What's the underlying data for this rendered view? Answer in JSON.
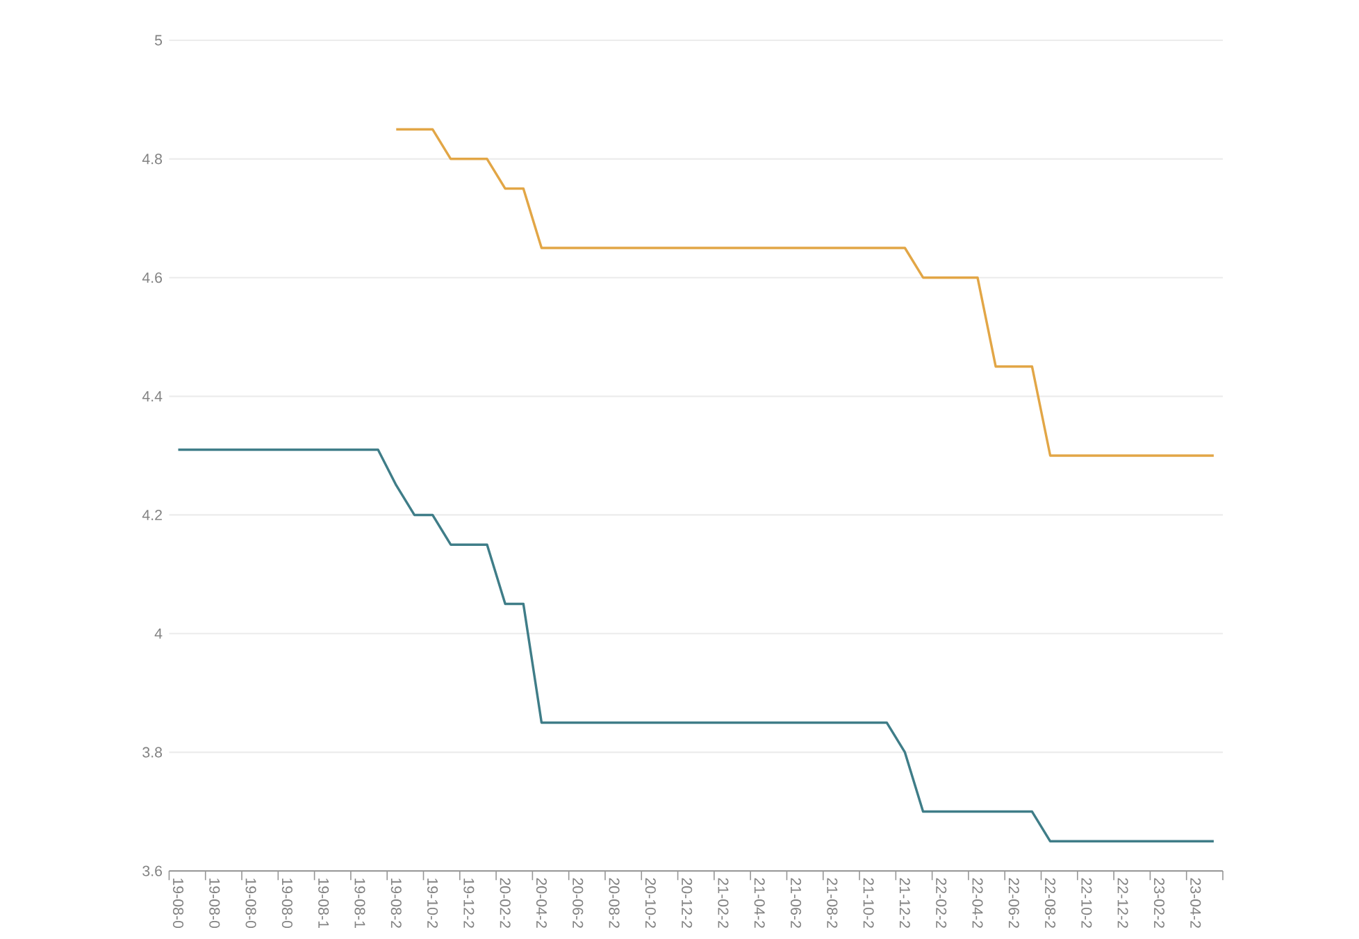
{
  "chart_data": {
    "type": "line",
    "ylim": [
      3.6,
      5
    ],
    "yticks": [
      3.6,
      3.8,
      4,
      4.2,
      4.4,
      4.6,
      4.8,
      5
    ],
    "grid": "y",
    "marker": "none",
    "line_style": "solid",
    "categories": [
      "19-08-0",
      null,
      "19-08-0",
      null,
      "19-08-0",
      null,
      "19-08-0",
      null,
      "19-08-1",
      null,
      "19-08-1",
      null,
      "19-08-2",
      null,
      "19-10-2",
      null,
      "19-12-2",
      null,
      "20-02-2",
      null,
      "20-04-2",
      null,
      "20-06-2",
      null,
      "20-08-2",
      null,
      "20-10-2",
      null,
      "20-12-2",
      null,
      "21-02-2",
      null,
      "21-04-2",
      null,
      "21-06-2",
      null,
      "21-08-2",
      null,
      "21-10-2",
      null,
      "21-12-2",
      null,
      "22-02-2",
      null,
      "22-04-2",
      null,
      "22-06-2",
      null,
      "22-08-2",
      null,
      "22-10-2",
      null,
      "22-12-2",
      null,
      "23-02-2",
      null,
      "23-04-2",
      null
    ],
    "series": [
      {
        "color": "#3f7d88",
        "values": [
          4.31,
          4.31,
          4.31,
          4.31,
          4.31,
          4.31,
          4.31,
          4.31,
          4.31,
          4.31,
          4.31,
          4.31,
          4.25,
          4.2,
          4.2,
          4.15,
          4.15,
          4.15,
          4.05,
          4.05,
          3.85,
          3.85,
          3.85,
          3.85,
          3.85,
          3.85,
          3.85,
          3.85,
          3.85,
          3.85,
          3.85,
          3.85,
          3.85,
          3.85,
          3.85,
          3.85,
          3.85,
          3.85,
          3.85,
          3.85,
          3.8,
          3.7,
          3.7,
          3.7,
          3.7,
          3.7,
          3.7,
          3.7,
          3.65,
          3.65,
          3.65,
          3.65,
          3.65,
          3.65,
          3.65,
          3.65,
          3.65,
          3.65
        ]
      },
      {
        "color": "#e2a646",
        "values": [
          null,
          null,
          null,
          null,
          null,
          null,
          null,
          null,
          null,
          null,
          null,
          null,
          4.85,
          4.85,
          4.85,
          4.8,
          4.8,
          4.8,
          4.75,
          4.75,
          4.65,
          4.65,
          4.65,
          4.65,
          4.65,
          4.65,
          4.65,
          4.65,
          4.65,
          4.65,
          4.65,
          4.65,
          4.65,
          4.65,
          4.65,
          4.65,
          4.65,
          4.65,
          4.65,
          4.65,
          4.65,
          4.6,
          4.6,
          4.6,
          4.6,
          4.45,
          4.45,
          4.45,
          4.3,
          4.3,
          4.3,
          4.3,
          4.3,
          4.3,
          4.3,
          4.3,
          4.3,
          4.3
        ]
      }
    ]
  }
}
